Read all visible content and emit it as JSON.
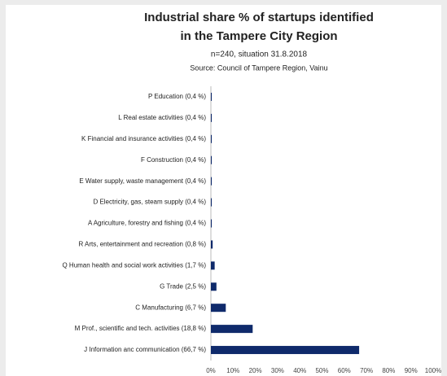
{
  "chart_data": {
    "type": "barh",
    "title": "Industrial share  % of startups identified",
    "title_line2": "in the Tampere City Region",
    "subtitle": "n=240, situation 31.8.2018",
    "source": "Source: Council of Tampere Region, Vainu",
    "categories": [
      "P Education (0,4 %)",
      "L Real estate activities (0,4 %)",
      "K Financial and insurance activities (0,4 %)",
      "F Construction (0,4 %)",
      "E Water supply, waste management (0,4 %)",
      "D Electricity, gas, steam supply (0,4 %)",
      "A Agriculture, forestry and fishing (0,4 %)",
      "R Arts, entertainment and recreation (0,8 %)",
      "Q Human health and social work activities (1,7 %)",
      "G Trade (2,5 %)",
      "C Manufacturing (6,7 %)",
      "M Prof., scientific and tech. activities (18,8 %)",
      "J Information anc communication (66,7 %)"
    ],
    "values": [
      0.4,
      0.4,
      0.4,
      0.4,
      0.4,
      0.4,
      0.4,
      0.8,
      1.7,
      2.5,
      6.7,
      18.8,
      66.7
    ],
    "color": "#0f2a6b",
    "xlim": [
      0,
      100
    ],
    "xticks": [
      {
        "value": 0,
        "label": "0%"
      },
      {
        "value": 10,
        "label": "10%"
      },
      {
        "value": 20,
        "label": "20%"
      },
      {
        "value": 30,
        "label": "30%"
      },
      {
        "value": 40,
        "label": "40%"
      },
      {
        "value": 50,
        "label": "50%"
      },
      {
        "value": 60,
        "label": "60%"
      },
      {
        "value": 70,
        "label": "70%"
      },
      {
        "value": 80,
        "label": "80%"
      },
      {
        "value": 90,
        "label": "90%"
      },
      {
        "value": 100,
        "label": "100%"
      }
    ],
    "grid": false
  }
}
